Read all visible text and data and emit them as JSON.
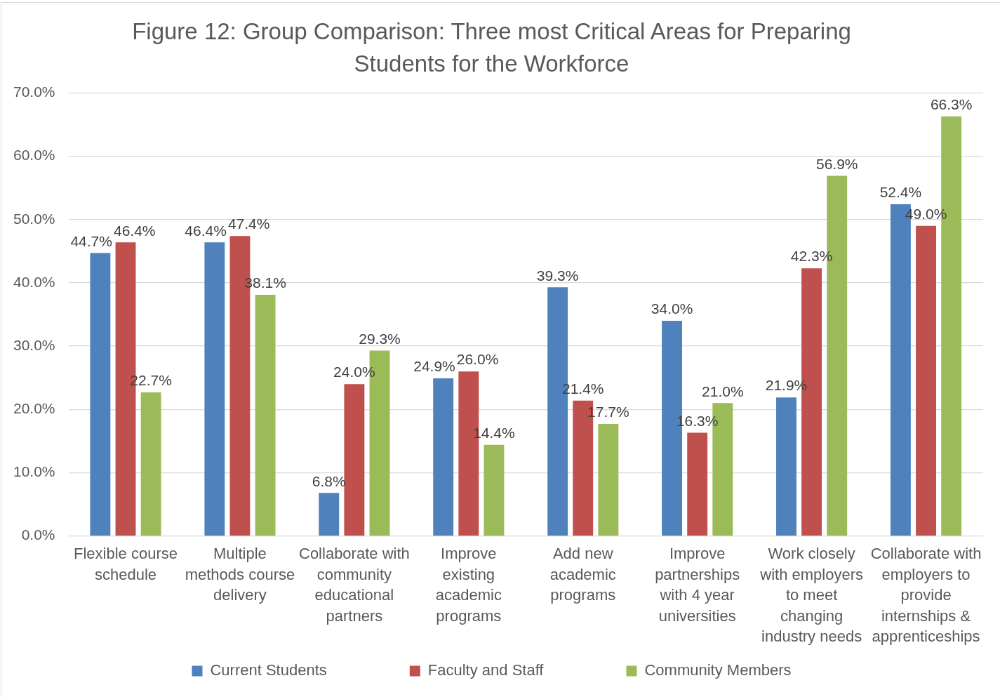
{
  "chart_data": {
    "type": "bar",
    "title": "Figure 12: Group Comparison: Three most Critical Areas for Preparing Students for the Workforce",
    "categories": [
      "Flexible course schedule",
      "Multiple methods course delivery",
      "Collaborate with community educational partners",
      "Improve existing academic programs",
      "Add new academic programs",
      "Improve partnerships with 4 year universities",
      "Work closely with employers to meet changing industry needs",
      "Collaborate with employers to provide internships & apprenticeships"
    ],
    "series": [
      {
        "name": "Current Students",
        "color": "#4f81bd",
        "values": [
          44.7,
          46.4,
          6.8,
          24.9,
          39.3,
          34.0,
          21.9,
          52.4
        ],
        "value_labels": [
          "44.7%",
          "46.4%",
          "6.8%",
          "24.9%",
          "39.3%",
          "34.0%",
          "21.9%",
          "52.4%"
        ]
      },
      {
        "name": "Faculty and Staff",
        "color": "#c0504d",
        "values": [
          46.4,
          47.4,
          24.0,
          26.0,
          21.4,
          16.3,
          42.3,
          49.0
        ],
        "value_labels": [
          "46.4%",
          "47.4%",
          "24.0%",
          "26.0%",
          "21.4%",
          "16.3%",
          "42.3%",
          "49.0%"
        ]
      },
      {
        "name": "Community Members",
        "color": "#9bbb59",
        "values": [
          22.7,
          38.1,
          29.3,
          14.4,
          17.7,
          21.0,
          56.9,
          66.3
        ],
        "value_labels": [
          "22.7%",
          "38.1%",
          "29.3%",
          "14.4%",
          "17.7%",
          "21.0%",
          "56.9%",
          "66.3%"
        ]
      }
    ],
    "ylim": [
      0,
      70
    ],
    "yticks": [
      {
        "value": 0,
        "label": "0.0%"
      },
      {
        "value": 10,
        "label": "10.0%"
      },
      {
        "value": 20,
        "label": "20.0%"
      },
      {
        "value": 30,
        "label": "30.0%"
      },
      {
        "value": 40,
        "label": "40.0%"
      },
      {
        "value": 50,
        "label": "50.0%"
      },
      {
        "value": 60,
        "label": "60.0%"
      },
      {
        "value": 70,
        "label": "70.0%"
      }
    ],
    "grid": "y",
    "legend": "bottom"
  }
}
